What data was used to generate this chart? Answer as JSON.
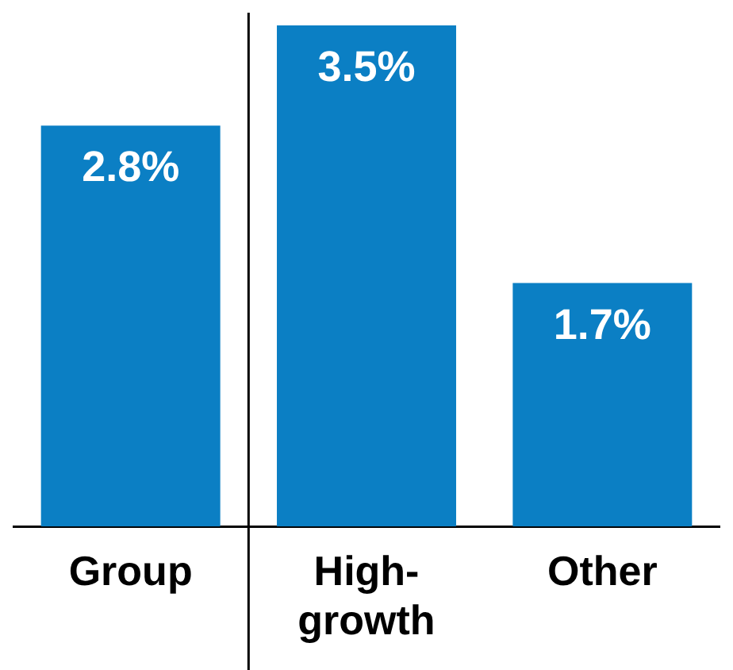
{
  "chart_data": {
    "type": "bar",
    "categories": [
      "Group",
      "High-growth",
      "Other"
    ],
    "values": [
      2.8,
      3.5,
      1.7
    ],
    "value_labels": [
      "2.8%",
      "3.5%",
      "1.7%"
    ],
    "color": "#0b7fc4",
    "legend": false
  }
}
